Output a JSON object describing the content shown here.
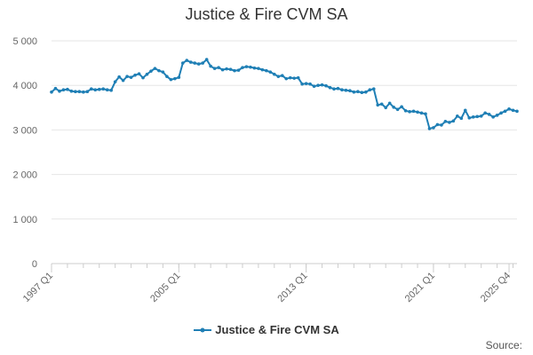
{
  "chart_data": {
    "type": "line",
    "title": "Justice & Fire CVM SA",
    "xlabel": "",
    "ylabel": "",
    "ylim": [
      0,
      5000
    ],
    "y_ticks": [
      "0",
      "1 000",
      "2 000",
      "3 000",
      "4 000",
      "5 000"
    ],
    "y_tick_values": [
      0,
      1000,
      2000,
      3000,
      4000,
      5000
    ],
    "x_tick_labels": [
      "1997 Q1",
      "2005 Q1",
      "2013 Q1",
      "2021 Q1",
      "2025 Q4"
    ],
    "x_tick_indices": [
      0,
      32,
      64,
      96,
      115
    ],
    "grid": "horizontal",
    "legend_position": "bottom",
    "series": [
      {
        "name": "Justice & Fire CVM SA",
        "color": "#1f7fb5",
        "values": [
          3850,
          3930,
          3870,
          3900,
          3910,
          3870,
          3860,
          3860,
          3850,
          3860,
          3920,
          3900,
          3910,
          3920,
          3900,
          3890,
          4080,
          4190,
          4110,
          4200,
          4180,
          4230,
          4260,
          4170,
          4250,
          4320,
          4380,
          4330,
          4300,
          4200,
          4130,
          4150,
          4180,
          4500,
          4560,
          4520,
          4500,
          4480,
          4500,
          4580,
          4430,
          4380,
          4400,
          4350,
          4370,
          4360,
          4330,
          4340,
          4400,
          4420,
          4410,
          4390,
          4380,
          4350,
          4330,
          4300,
          4250,
          4200,
          4220,
          4150,
          4170,
          4160,
          4170,
          4030,
          4040,
          4030,
          3980,
          4000,
          4010,
          3990,
          3950,
          3920,
          3930,
          3900,
          3890,
          3880,
          3850,
          3860,
          3840,
          3850,
          3900,
          3920,
          3560,
          3580,
          3500,
          3600,
          3510,
          3460,
          3520,
          3430,
          3410,
          3420,
          3400,
          3380,
          3360,
          3030,
          3050,
          3120,
          3110,
          3190,
          3170,
          3200,
          3310,
          3260,
          3440,
          3270,
          3290,
          3300,
          3310,
          3380,
          3350,
          3290,
          3330,
          3380,
          3420,
          3470,
          3440,
          3420
        ]
      }
    ]
  },
  "legend": {
    "label": "Justice & Fire CVM SA"
  },
  "footer": {
    "source_label": "Source:"
  }
}
